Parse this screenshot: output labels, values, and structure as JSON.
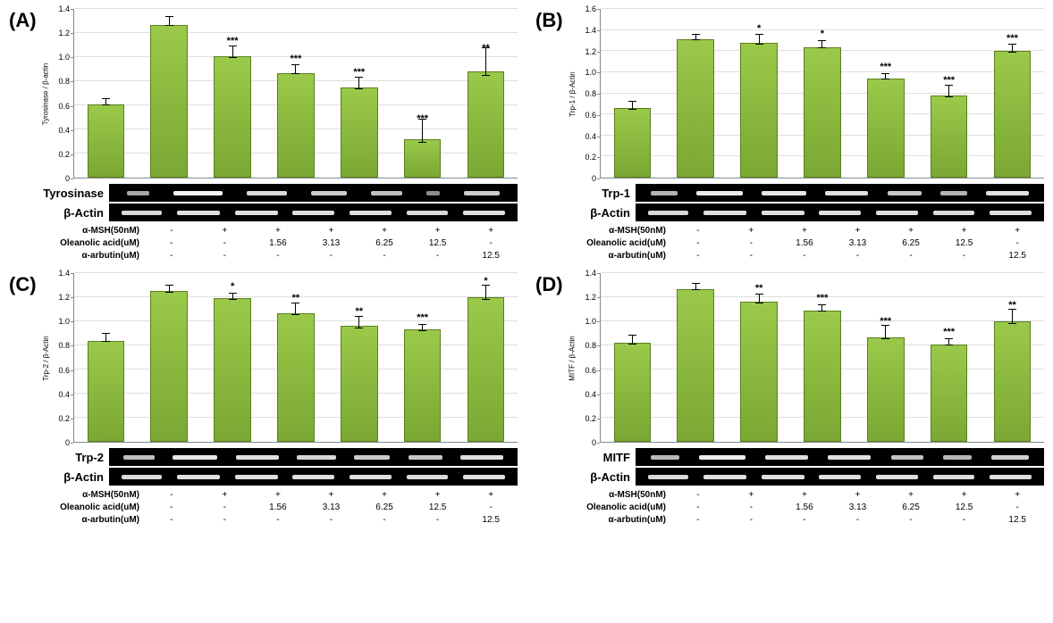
{
  "bar_color": "#9ac94a",
  "bar_border": "#5b7f1f",
  "grid_color": "#dedede",
  "axis_color": "#888888",
  "band_bg": "#000000",
  "band_color": "#ffffff",
  "conditions": {
    "rows": [
      {
        "label": "α-MSH(50nM)",
        "cells": [
          "-",
          "+",
          "+",
          "+",
          "+",
          "+",
          "+"
        ]
      },
      {
        "label": "Oleanolic acid(uM)",
        "cells": [
          "-",
          "-",
          "1.56",
          "3.13",
          "6.25",
          "12.5",
          "-"
        ]
      },
      {
        "label": "α-arbutin(uM)",
        "cells": [
          "-",
          "-",
          "-",
          "-",
          "-",
          "-",
          "12.5"
        ]
      }
    ]
  },
  "panels": [
    {
      "id": "A",
      "ylabel": "Tyrosinase / β-actin",
      "ymax": 1.4,
      "ystep": 0.2,
      "blot1": "Tyrosinase",
      "bars": [
        {
          "v": 0.61,
          "e": 0.03,
          "sig": ""
        },
        {
          "v": 1.27,
          "e": 0.04,
          "sig": ""
        },
        {
          "v": 1.01,
          "e": 0.05,
          "sig": "***"
        },
        {
          "v": 0.87,
          "e": 0.04,
          "sig": "***"
        },
        {
          "v": 0.75,
          "e": 0.05,
          "sig": "***"
        },
        {
          "v": 0.32,
          "e": 0.1,
          "sig": "***"
        },
        {
          "v": 0.88,
          "e": 0.12,
          "sig": "**"
        }
      ],
      "bands1": [
        25,
        55,
        45,
        40,
        35,
        15,
        40
      ],
      "bands2": [
        45,
        48,
        48,
        47,
        47,
        46,
        47
      ]
    },
    {
      "id": "B",
      "ylabel": "Trp-1 / β-Actin",
      "ymax": 1.6,
      "ystep": 0.2,
      "blot1": "Trp-1",
      "bars": [
        {
          "v": 0.66,
          "e": 0.04,
          "sig": ""
        },
        {
          "v": 1.31,
          "e": 0.03,
          "sig": ""
        },
        {
          "v": 1.28,
          "e": 0.05,
          "sig": "*"
        },
        {
          "v": 1.24,
          "e": 0.04,
          "sig": "*"
        },
        {
          "v": 0.94,
          "e": 0.03,
          "sig": "***"
        },
        {
          "v": 0.78,
          "e": 0.06,
          "sig": "***"
        },
        {
          "v": 1.2,
          "e": 0.04,
          "sig": "***"
        }
      ],
      "bands1": [
        30,
        52,
        50,
        48,
        38,
        30,
        48
      ],
      "bands2": [
        45,
        48,
        48,
        47,
        47,
        46,
        47
      ]
    },
    {
      "id": "C",
      "ylabel": "Trp-2 / β-Actin",
      "ymax": 1.4,
      "ystep": 0.2,
      "blot1": "Trp-2",
      "bars": [
        {
          "v": 0.84,
          "e": 0.04,
          "sig": ""
        },
        {
          "v": 1.25,
          "e": 0.03,
          "sig": ""
        },
        {
          "v": 1.19,
          "e": 0.03,
          "sig": "*"
        },
        {
          "v": 1.07,
          "e": 0.05,
          "sig": "**"
        },
        {
          "v": 0.96,
          "e": 0.05,
          "sig": "**"
        },
        {
          "v": 0.93,
          "e": 0.03,
          "sig": "***"
        },
        {
          "v": 1.2,
          "e": 0.06,
          "sig": "*"
        }
      ],
      "bands1": [
        35,
        50,
        48,
        44,
        40,
        38,
        48
      ],
      "bands2": [
        45,
        48,
        48,
        47,
        47,
        46,
        47
      ]
    },
    {
      "id": "D",
      "ylabel": "MITF / β-Actin",
      "ymax": 1.4,
      "ystep": 0.2,
      "blot1": "MITF",
      "bars": [
        {
          "v": 0.82,
          "e": 0.04,
          "sig": ""
        },
        {
          "v": 1.27,
          "e": 0.03,
          "sig": ""
        },
        {
          "v": 1.16,
          "e": 0.04,
          "sig": "**"
        },
        {
          "v": 1.09,
          "e": 0.03,
          "sig": "***"
        },
        {
          "v": 0.87,
          "e": 0.06,
          "sig": "***"
        },
        {
          "v": 0.81,
          "e": 0.03,
          "sig": "***"
        },
        {
          "v": 1.0,
          "e": 0.06,
          "sig": "**"
        }
      ],
      "bands1": [
        32,
        52,
        48,
        48,
        36,
        32,
        42
      ],
      "bands2": [
        45,
        48,
        48,
        47,
        47,
        46,
        47
      ]
    }
  ],
  "beta_actin_label": "β-Actin"
}
